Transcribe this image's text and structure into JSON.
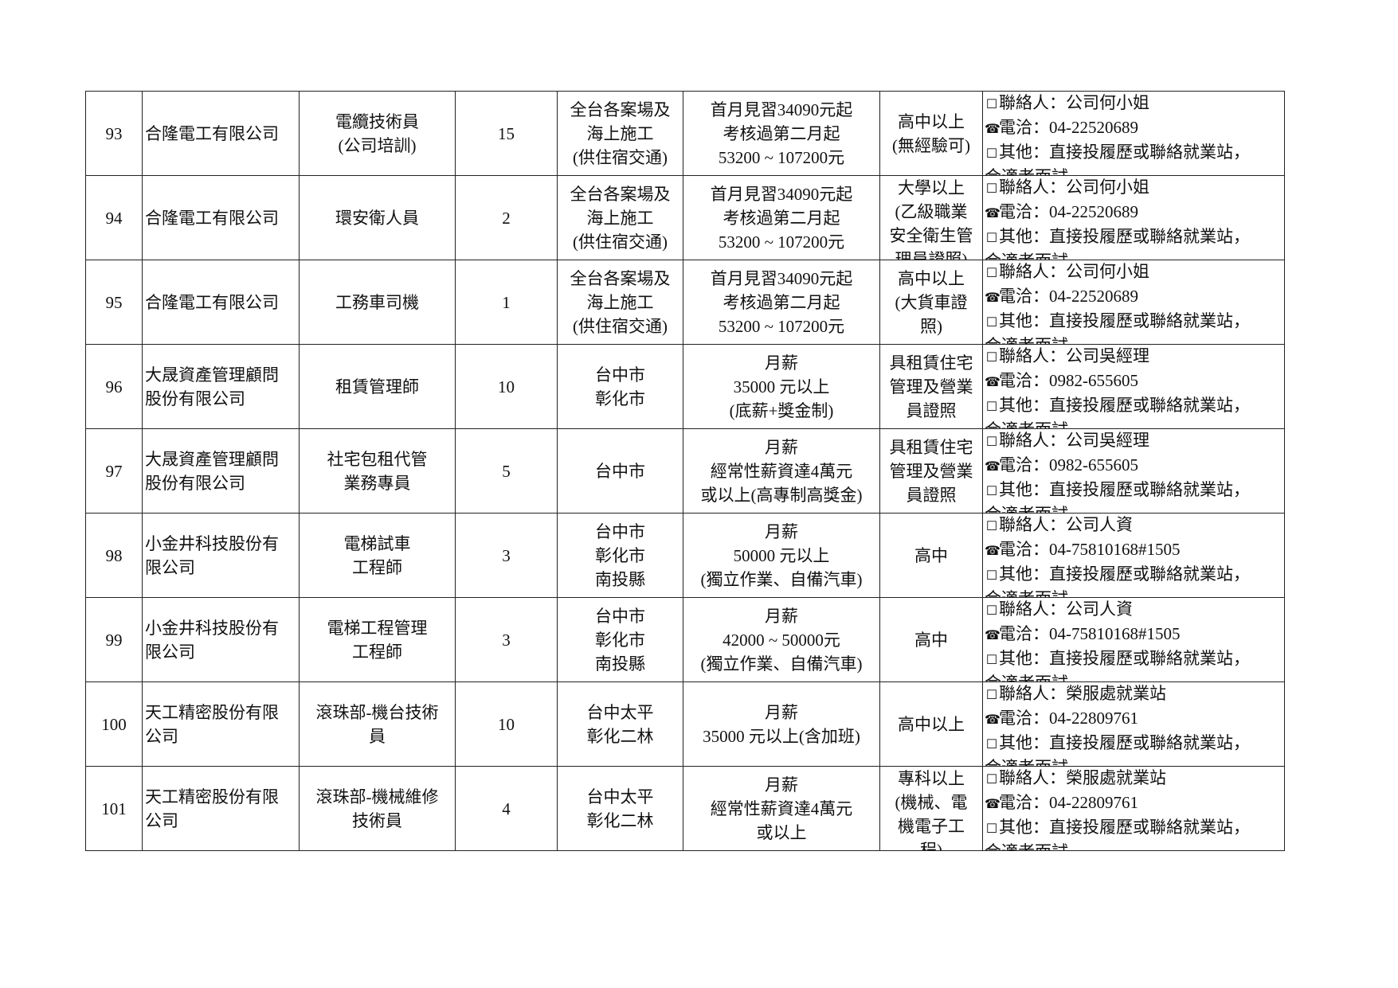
{
  "rows": [
    {
      "no": "93",
      "company": [
        "合隆電工有限公司"
      ],
      "position": [
        "電纜技術員",
        "(公司培訓)"
      ],
      "count": "15",
      "location": [
        "全台各案場及",
        "海上施工",
        "(供住宿交通)"
      ],
      "salary": [
        "首月見習34090元起",
        "考核過第二月起",
        "53200 ~ 107200元"
      ],
      "requirement": [
        "高中以上",
        "(無經驗可)"
      ],
      "contact": {
        "person": "聯絡人：公司何小姐",
        "phone": "電洽：04-22520689",
        "other": [
          "其他：直接投履歷或聯絡就業站，",
          "合適者面試"
        ]
      }
    },
    {
      "no": "94",
      "company": [
        "合隆電工有限公司"
      ],
      "position": [
        "環安衛人員"
      ],
      "count": "2",
      "location": [
        "全台各案場及",
        "海上施工",
        "(供住宿交通)"
      ],
      "salary": [
        "首月見習34090元起",
        "考核過第二月起",
        "53200 ~ 107200元"
      ],
      "requirement": [
        "大學以上",
        "(乙級職業",
        "安全衛生管",
        "理員證照)"
      ],
      "contact": {
        "person": "聯絡人：公司何小姐",
        "phone": "電洽：04-22520689",
        "other": [
          "其他：直接投履歷或聯絡就業站，",
          "合適者面試"
        ]
      }
    },
    {
      "no": "95",
      "company": [
        "合隆電工有限公司"
      ],
      "position": [
        "工務車司機"
      ],
      "count": "1",
      "location": [
        "全台各案場及",
        "海上施工",
        "(供住宿交通)"
      ],
      "salary": [
        "首月見習34090元起",
        "考核過第二月起",
        "53200 ~ 107200元"
      ],
      "requirement": [
        "高中以上",
        "(大貨車證",
        "照)"
      ],
      "contact": {
        "person": "聯絡人：公司何小姐",
        "phone": "電洽：04-22520689",
        "other": [
          "其他：直接投履歷或聯絡就業站，",
          "合適者面試"
        ]
      }
    },
    {
      "no": "96",
      "company": [
        "大晟資產管理顧問",
        "股份有限公司"
      ],
      "position": [
        "租賃管理師"
      ],
      "count": "10",
      "location": [
        "台中市",
        "彰化市"
      ],
      "salary": [
        "月薪",
        "35000 元以上",
        "(底薪+獎金制)"
      ],
      "requirement": [
        "具租賃住宅",
        "管理及營業",
        "員證照"
      ],
      "contact": {
        "person": "聯絡人：公司吳經理",
        "phone": "電洽：0982-655605",
        "other": [
          "其他：直接投履歷或聯絡就業站，",
          "合適者面試"
        ]
      }
    },
    {
      "no": "97",
      "company": [
        "大晟資產管理顧問",
        "股份有限公司"
      ],
      "position": [
        "社宅包租代管",
        "業務專員"
      ],
      "count": "5",
      "location": [
        "台中市"
      ],
      "salary": [
        "月薪",
        "經常性薪資達4萬元",
        "或以上(高專制高獎金)"
      ],
      "requirement": [
        "具租賃住宅",
        "管理及營業",
        "員證照"
      ],
      "contact": {
        "person": "聯絡人：公司吳經理",
        "phone": "電洽：0982-655605",
        "other": [
          "其他：直接投履歷或聯絡就業站，",
          "合適者面試"
        ]
      }
    },
    {
      "no": "98",
      "company": [
        "小金井科技股份有",
        "限公司"
      ],
      "position": [
        "電梯試車",
        "工程師"
      ],
      "count": "3",
      "location": [
        "台中市",
        "彰化市",
        "南投縣"
      ],
      "salary": [
        "月薪",
        "50000 元以上",
        "(獨立作業、自備汽車)"
      ],
      "requirement": [
        "高中"
      ],
      "contact": {
        "person": "聯絡人：公司人資",
        "phone": "電洽：04-75810168#1505",
        "other": [
          "其他：直接投履歷或聯絡就業站，",
          "合適者面試"
        ]
      }
    },
    {
      "no": "99",
      "company": [
        "小金井科技股份有",
        "限公司"
      ],
      "position": [
        "電梯工程管理",
        "工程師"
      ],
      "count": "3",
      "location": [
        "台中市",
        "彰化市",
        "南投縣"
      ],
      "salary": [
        "月薪",
        "42000 ~ 50000元",
        "(獨立作業、自備汽車)"
      ],
      "requirement": [
        "高中"
      ],
      "contact": {
        "person": "聯絡人：公司人資",
        "phone": "電洽：04-75810168#1505",
        "other": [
          "其他：直接投履歷或聯絡就業站，",
          "合適者面試"
        ]
      }
    },
    {
      "no": "100",
      "company": [
        "天工精密股份有限",
        "公司"
      ],
      "position": [
        "滾珠部-機台技術",
        "員"
      ],
      "count": "10",
      "location": [
        "台中太平",
        "彰化二林"
      ],
      "salary": [
        "月薪",
        "35000 元以上(含加班)"
      ],
      "requirement": [
        "高中以上"
      ],
      "contact": {
        "person": "聯絡人：榮服處就業站",
        "phone": "電洽：04-22809761",
        "other": [
          "其他：直接投履歷或聯絡就業站，",
          "合適者面試"
        ]
      }
    },
    {
      "no": "101",
      "company": [
        "天工精密股份有限",
        "公司"
      ],
      "position": [
        "滾珠部-機械維修",
        "技術員"
      ],
      "count": "4",
      "location": [
        "台中太平",
        "彰化二林"
      ],
      "salary": [
        "月薪",
        "經常性薪資達4萬元",
        "或以上"
      ],
      "requirement": [
        "專科以上",
        "(機械、電",
        "機電子工",
        "程)"
      ],
      "contact": {
        "person": "聯絡人：榮服處就業站",
        "phone": "電洽：04-22809761",
        "other": [
          "其他：直接投履歷或聯絡就業站，",
          "合適者面試"
        ]
      }
    }
  ],
  "icons": {
    "checkbox": "☐",
    "phone": "☎"
  }
}
